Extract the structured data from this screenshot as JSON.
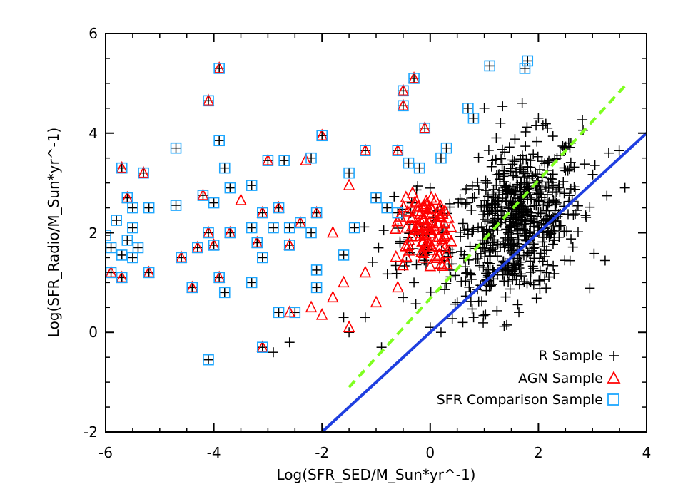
{
  "chart_data": {
    "type": "scatter",
    "title": "",
    "xlabel": "Log(SFR_SED/M_Sun*yr^-1)",
    "ylabel": "Log(SFR_Radio/M_Sun*yr^-1)",
    "xlim": [
      -6,
      4
    ],
    "ylim": [
      -2,
      6
    ],
    "xticks": [
      -6,
      -4,
      -2,
      0,
      2,
      4
    ],
    "yticks": [
      -2,
      0,
      2,
      4,
      6
    ],
    "x_tick_labels": [
      "-6",
      "-4",
      "-2",
      "0",
      "2",
      "4"
    ],
    "y_tick_labels": [
      "-2",
      "0",
      "2",
      "4",
      "6"
    ],
    "legend_position": "bottom-right",
    "colors": {
      "r_sample": "#000000",
      "agn_sample": "#ff0000",
      "sfr_comparison_sample": "#1ea7ff",
      "one_to_one_line": "#1f3fe0",
      "dashed_line": "#7fff1f"
    },
    "series": [
      {
        "name": "R Sample",
        "marker": "plus",
        "color": "#000000",
        "cluster": {
          "description": "dense cloud of several hundred points",
          "center": [
            1.6,
            2.2
          ],
          "x_range": [
            0.0,
            3.6
          ],
          "y_range": [
            0.1,
            4.7
          ]
        },
        "points": [
          [
            -1.5,
            0.0
          ],
          [
            -1.2,
            0.3
          ],
          [
            -0.9,
            -0.3
          ],
          [
            -0.5,
            0.7
          ],
          [
            -0.3,
            1.0
          ],
          [
            0.2,
            0.0
          ],
          [
            0.0,
            0.1
          ],
          [
            0.5,
            0.6
          ],
          [
            3.3,
            3.6
          ],
          [
            3.6,
            2.9
          ],
          [
            1.7,
            4.6
          ],
          [
            2.0,
            4.3
          ],
          [
            1.0,
            4.5
          ],
          [
            1.3,
            4.2
          ],
          [
            2.6,
            3.8
          ],
          [
            -2.9,
            -0.4
          ],
          [
            -2.6,
            -0.2
          ],
          [
            -1.6,
            0.3
          ]
        ]
      },
      {
        "name": "AGN Sample",
        "marker": "triangle",
        "color": "#ff0000",
        "cluster": {
          "description": "dense clump",
          "center": [
            -0.1,
            2.1
          ],
          "x_range": [
            -0.8,
            0.4
          ],
          "y_range": [
            1.2,
            2.8
          ]
        },
        "points": [
          [
            -3.9,
            5.3
          ],
          [
            -4.1,
            4.65
          ],
          [
            -0.5,
            4.85
          ],
          [
            -0.3,
            5.1
          ],
          [
            -0.5,
            4.55
          ],
          [
            -0.1,
            4.1
          ],
          [
            -2.0,
            3.95
          ],
          [
            -1.2,
            3.65
          ],
          [
            -0.6,
            3.65
          ],
          [
            -3.0,
            3.45
          ],
          [
            -2.3,
            3.45
          ],
          [
            -5.7,
            3.3
          ],
          [
            -5.3,
            3.2
          ],
          [
            -1.5,
            2.95
          ],
          [
            -5.6,
            2.7
          ],
          [
            -4.2,
            2.75
          ],
          [
            -3.1,
            2.4
          ],
          [
            -2.1,
            2.4
          ],
          [
            -4.1,
            2.0
          ],
          [
            -3.7,
            2.0
          ],
          [
            -4.0,
            1.75
          ],
          [
            -4.3,
            1.7
          ],
          [
            -4.6,
            1.5
          ],
          [
            -3.5,
            2.65
          ],
          [
            -2.8,
            2.5
          ],
          [
            -2.4,
            2.2
          ],
          [
            -1.8,
            2.0
          ],
          [
            -2.6,
            1.75
          ],
          [
            -3.2,
            1.8
          ],
          [
            -1.2,
            1.2
          ],
          [
            -1.6,
            1.0
          ],
          [
            -1.8,
            0.7
          ],
          [
            -2.2,
            0.5
          ],
          [
            -2.0,
            0.35
          ],
          [
            -1.5,
            0.1
          ],
          [
            -2.6,
            0.4
          ],
          [
            -1.0,
            0.6
          ],
          [
            -0.6,
            0.9
          ],
          [
            -3.1,
            -0.3
          ],
          [
            -5.9,
            1.2
          ],
          [
            -5.7,
            1.1
          ],
          [
            -5.2,
            1.2
          ],
          [
            -4.4,
            0.9
          ],
          [
            -3.9,
            1.1
          ]
        ]
      },
      {
        "name": "SFR Comparison Sample",
        "marker": "square",
        "color": "#1ea7ff",
        "points": [
          [
            1.1,
            5.35
          ],
          [
            1.8,
            5.45
          ],
          [
            1.75,
            5.3
          ],
          [
            0.7,
            4.5
          ],
          [
            0.8,
            4.3
          ],
          [
            -3.9,
            5.3
          ],
          [
            -4.1,
            4.65
          ],
          [
            -0.5,
            4.85
          ],
          [
            -0.3,
            5.1
          ],
          [
            -0.5,
            4.55
          ],
          [
            -0.1,
            4.1
          ],
          [
            -3.9,
            3.85
          ],
          [
            -2.0,
            3.95
          ],
          [
            -1.2,
            3.65
          ],
          [
            -0.6,
            3.65
          ],
          [
            -3.0,
            3.45
          ],
          [
            -2.7,
            3.45
          ],
          [
            -2.2,
            3.5
          ],
          [
            -3.8,
            3.3
          ],
          [
            -5.7,
            3.3
          ],
          [
            -5.3,
            3.2
          ],
          [
            -1.5,
            3.2
          ],
          [
            -4.7,
            3.7
          ],
          [
            -0.4,
            3.4
          ],
          [
            -0.2,
            3.3
          ],
          [
            0.2,
            3.5
          ],
          [
            0.3,
            3.7
          ],
          [
            -5.6,
            2.7
          ],
          [
            -4.2,
            2.75
          ],
          [
            -4.0,
            2.6
          ],
          [
            -3.7,
            2.9
          ],
          [
            -3.3,
            2.95
          ],
          [
            -2.8,
            2.5
          ],
          [
            -2.4,
            2.2
          ],
          [
            -3.1,
            2.4
          ],
          [
            -2.1,
            2.4
          ],
          [
            -1.0,
            2.7
          ],
          [
            -0.8,
            2.5
          ],
          [
            -0.6,
            2.4
          ],
          [
            -5.5,
            2.5
          ],
          [
            -5.2,
            2.5
          ],
          [
            -4.7,
            2.55
          ],
          [
            -5.8,
            2.25
          ],
          [
            -5.5,
            2.1
          ],
          [
            -4.1,
            2.0
          ],
          [
            -3.7,
            2.0
          ],
          [
            -3.3,
            2.1
          ],
          [
            -2.9,
            2.1
          ],
          [
            -2.6,
            2.1
          ],
          [
            -2.2,
            2.0
          ],
          [
            -1.4,
            2.1
          ],
          [
            -6.0,
            1.95
          ],
          [
            -5.9,
            1.7
          ],
          [
            -5.6,
            1.85
          ],
          [
            -5.4,
            1.7
          ],
          [
            -5.7,
            1.55
          ],
          [
            -5.5,
            1.5
          ],
          [
            -4.6,
            1.5
          ],
          [
            -4.3,
            1.7
          ],
          [
            -4.0,
            1.75
          ],
          [
            -3.2,
            1.8
          ],
          [
            -3.1,
            1.5
          ],
          [
            -2.6,
            1.75
          ],
          [
            -1.6,
            1.55
          ],
          [
            -5.9,
            1.2
          ],
          [
            -5.7,
            1.1
          ],
          [
            -5.2,
            1.2
          ],
          [
            -4.4,
            0.9
          ],
          [
            -3.9,
            1.1
          ],
          [
            -3.8,
            0.8
          ],
          [
            -3.3,
            1.0
          ],
          [
            -2.1,
            1.25
          ],
          [
            -2.1,
            0.9
          ],
          [
            -2.8,
            0.4
          ],
          [
            -2.5,
            0.4
          ],
          [
            -3.1,
            -0.3
          ],
          [
            -4.1,
            -0.55
          ]
        ]
      }
    ],
    "lines": [
      {
        "name": "1:1 line",
        "style": "solid",
        "color": "#1f3fe0",
        "x": [
          -2.0,
          4.0
        ],
        "y": [
          -2.0,
          4.0
        ]
      },
      {
        "name": "offset line",
        "style": "dashed",
        "color": "#7fff1f",
        "x": [
          -1.5,
          3.6
        ],
        "y": [
          -1.1,
          4.95
        ]
      }
    ]
  },
  "legend": {
    "items": [
      {
        "label": "R Sample",
        "marker": "plus",
        "color": "#000000"
      },
      {
        "label": "AGN Sample",
        "marker": "triangle",
        "color": "#ff0000"
      },
      {
        "label": "SFR Comparison Sample",
        "marker": "square",
        "color": "#1ea7ff"
      }
    ]
  }
}
